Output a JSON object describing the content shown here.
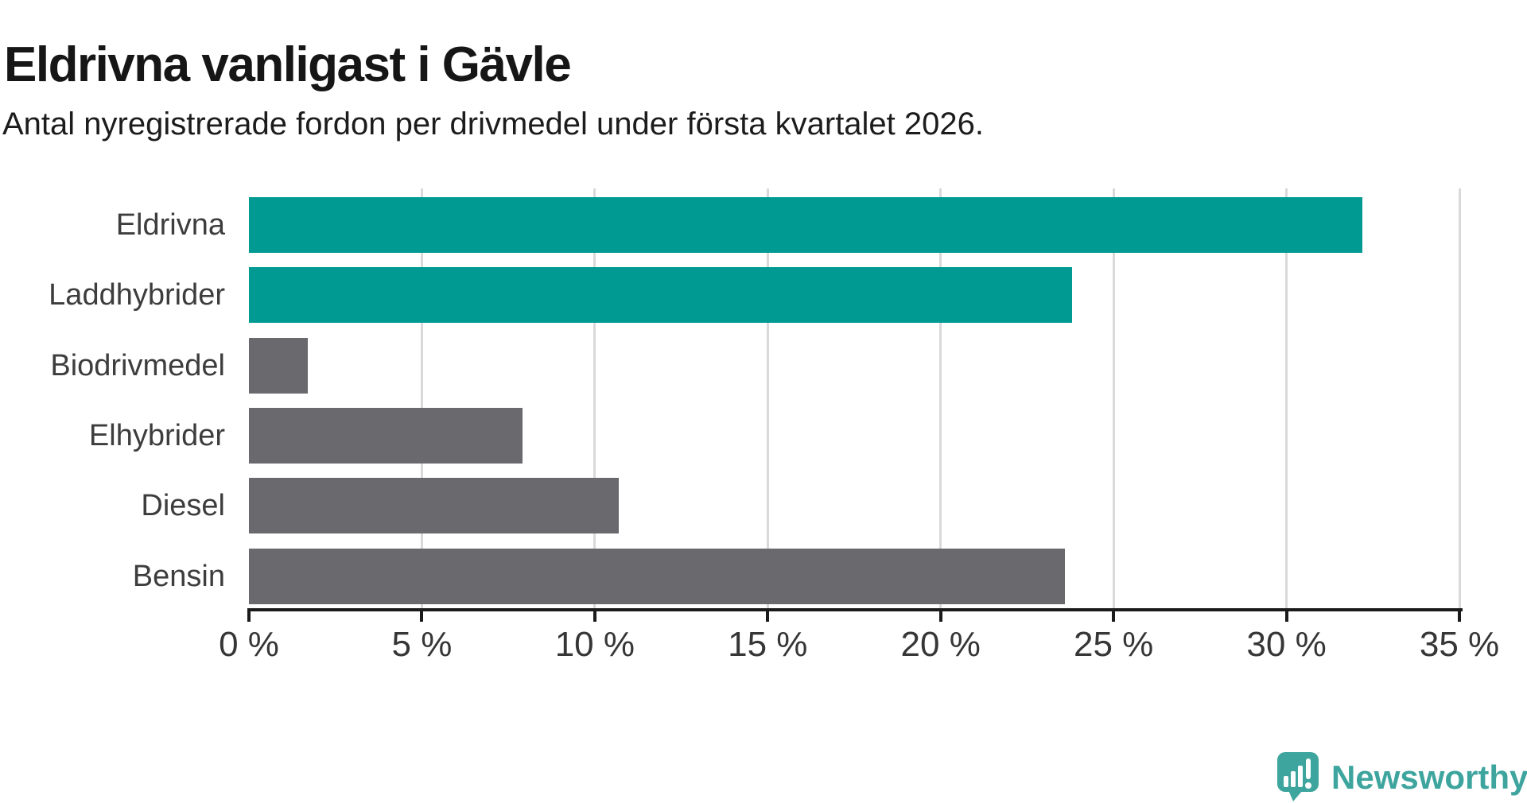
{
  "header": {
    "title": "Eldrivna vanligast i Gävle",
    "subtitle": "Antal nyregistrerade fordon per drivmedel under första kvartalet 2026."
  },
  "chart_data": {
    "type": "bar",
    "orientation": "horizontal",
    "title": "Eldrivna vanligast i Gävle",
    "subtitle": "Antal nyregistrerade fordon per drivmedel under första kvartalet 2026.",
    "categories": [
      "Eldrivna",
      "Laddhybrider",
      "Biodrivmedel",
      "Elhybrider",
      "Diesel",
      "Bensin"
    ],
    "values": [
      32.2,
      23.8,
      1.7,
      7.9,
      10.7,
      23.6
    ],
    "unit": "%",
    "xlim": [
      0,
      35
    ],
    "x_ticks": [
      {
        "value": 0,
        "label": "0 %"
      },
      {
        "value": 5,
        "label": "5 %"
      },
      {
        "value": 10,
        "label": "10 %"
      },
      {
        "value": 15,
        "label": "15 %"
      },
      {
        "value": 20,
        "label": "20 %"
      },
      {
        "value": 25,
        "label": "25 %"
      },
      {
        "value": 30,
        "label": "30 %"
      },
      {
        "value": 35,
        "label": "35 %"
      }
    ],
    "bar_colors": [
      "#009a93",
      "#009a93",
      "#69696e",
      "#69696e",
      "#69696e",
      "#69696e"
    ],
    "highlight_color": "#009a93",
    "default_color": "#69696e",
    "gridline_color": "#d9d9d9",
    "axis_color": "#1a1a1a",
    "grid": true,
    "legend": false
  },
  "branding": {
    "logo_text": "Newsworthy",
    "logo_color": "#3ea59e"
  }
}
